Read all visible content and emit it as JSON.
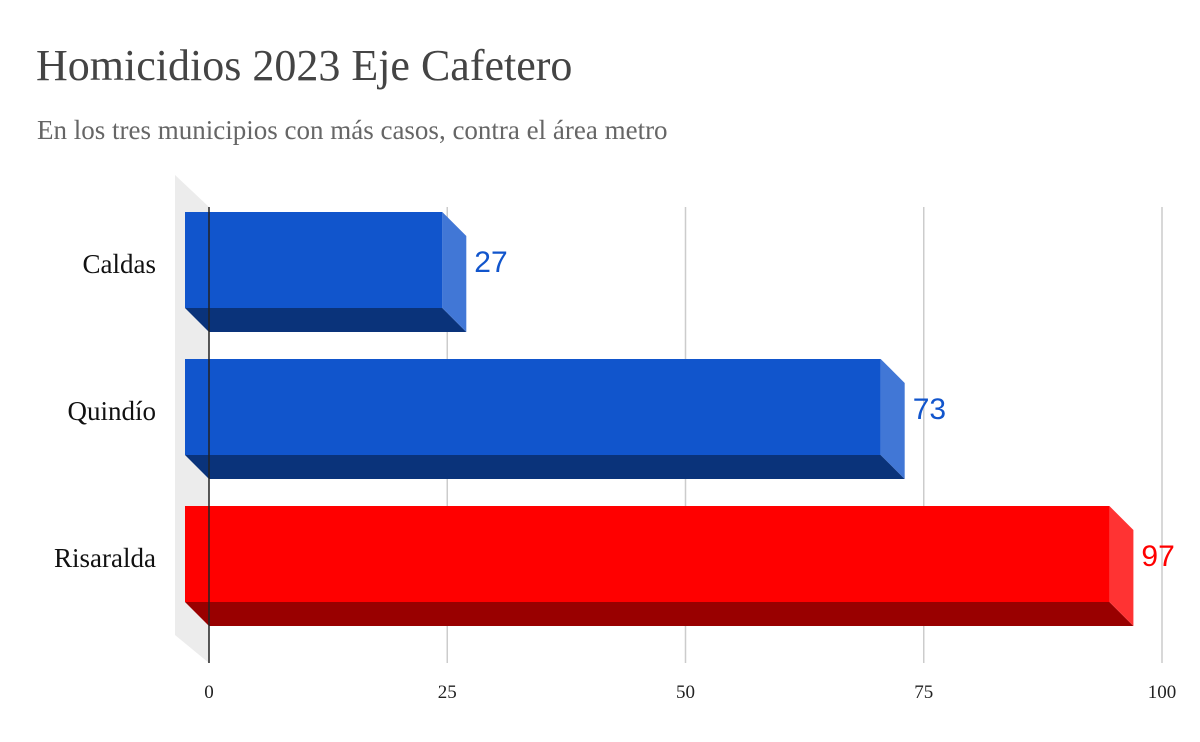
{
  "chart_data": {
    "type": "bar",
    "orientation": "horizontal",
    "title": "Homicidios 2023 Eje Cafetero",
    "subtitle": "En los tres municipios con más casos, contra el área metro",
    "categories": [
      "Caldas",
      "Quindío",
      "Risaralda"
    ],
    "values": [
      27,
      73,
      97
    ],
    "data_labels": [
      "27",
      "73",
      "97"
    ],
    "bar_colors": [
      "#1155cc",
      "#1155cc",
      "#ff0000"
    ],
    "label_colors": [
      "#1155cc",
      "#1155cc",
      "#ff0000"
    ],
    "xlim": [
      0,
      100
    ],
    "x_ticks": [
      0,
      25,
      50,
      75,
      100
    ],
    "tick_labels": [
      "0",
      "25",
      "50",
      "75",
      "100"
    ],
    "xlabel": "",
    "ylabel": "",
    "grid": true,
    "legend": "none",
    "style": "3d"
  }
}
